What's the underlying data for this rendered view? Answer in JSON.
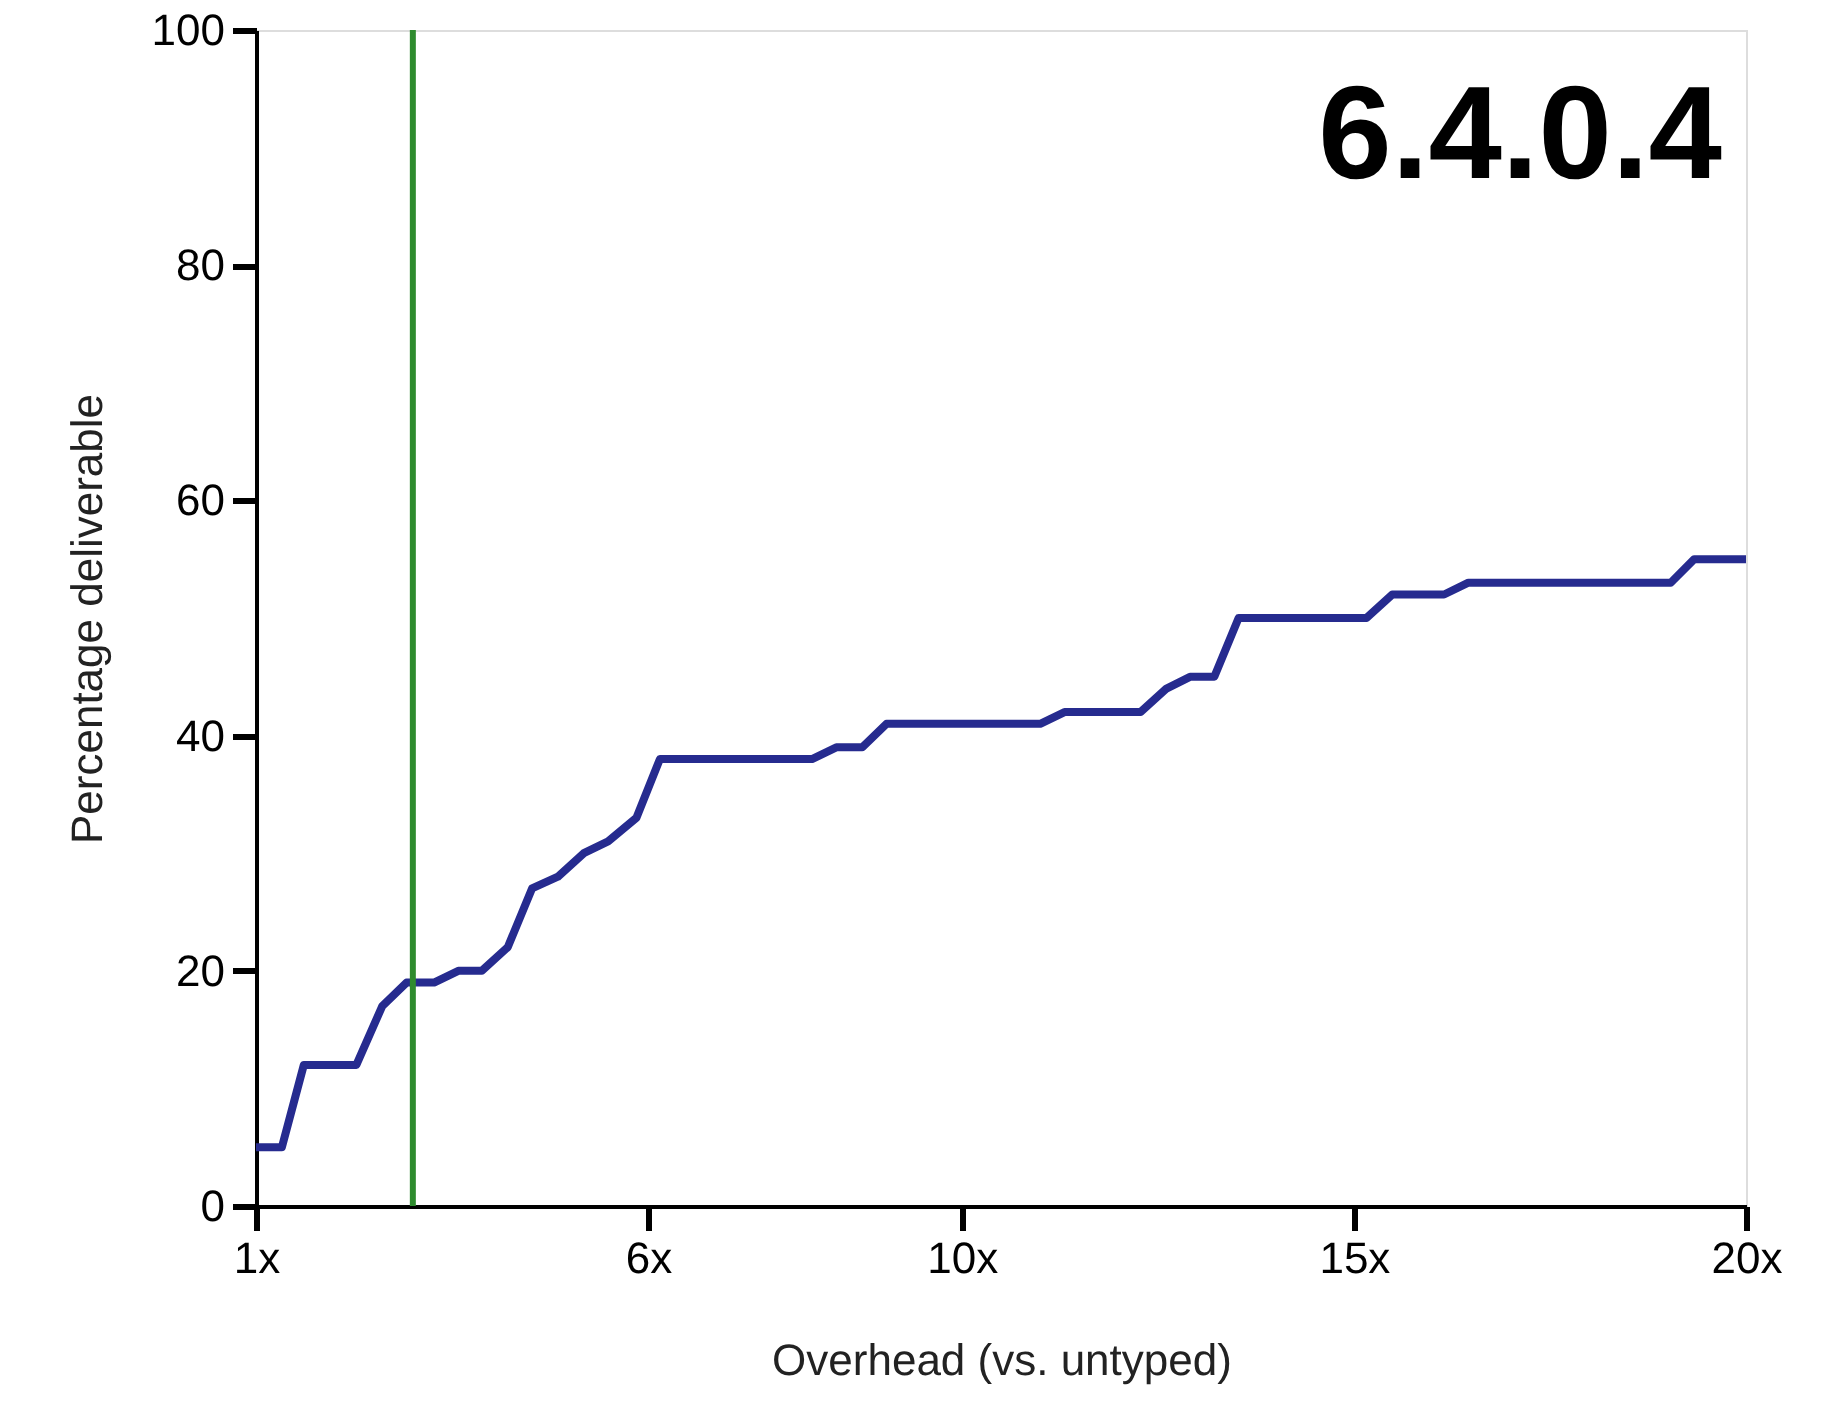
{
  "chart_data": {
    "type": "line",
    "xlabel": "Overhead (vs. untyped)",
    "ylabel": "Percentage deliverable",
    "annotations": [
      "6.4.0.4"
    ],
    "xlim": [
      1,
      20
    ],
    "xticks": [
      {
        "value": 1,
        "label": "1x"
      },
      {
        "value": 6,
        "label": "6x"
      },
      {
        "value": 10,
        "label": "10x"
      },
      {
        "value": 15,
        "label": "15x"
      },
      {
        "value": 20,
        "label": "20x"
      }
    ],
    "ylim": [
      0,
      100
    ],
    "yticks": [
      0,
      20,
      40,
      60,
      80,
      100
    ],
    "grid": false,
    "marker": "none",
    "line_style": "solid",
    "ref_lines": [
      {
        "axis": "x",
        "value": 3,
        "label": null,
        "color": "#2e8b2e"
      }
    ],
    "series": [
      {
        "color": "#262b8f",
        "x": [
          1,
          1.33,
          1.61,
          2.28,
          2.61,
          2.92,
          3.27,
          3.58,
          3.88,
          4.21,
          4.52,
          4.85,
          5.18,
          5.49,
          5.85,
          6.15,
          8.09,
          8.4,
          8.73,
          9.04,
          11.0,
          11.31,
          12.28,
          12.61,
          12.91,
          13.22,
          13.53,
          15.16,
          15.49,
          16.15,
          16.46,
          19.04,
          19.34,
          20
        ],
        "values": [
          5,
          5,
          12,
          12,
          17,
          19,
          19,
          20,
          20,
          22,
          27,
          28,
          30,
          31,
          33,
          38,
          38,
          39,
          39,
          41,
          41,
          42,
          42,
          44,
          45,
          45,
          50,
          50,
          52,
          52,
          53,
          53,
          55,
          55
        ]
      }
    ]
  }
}
